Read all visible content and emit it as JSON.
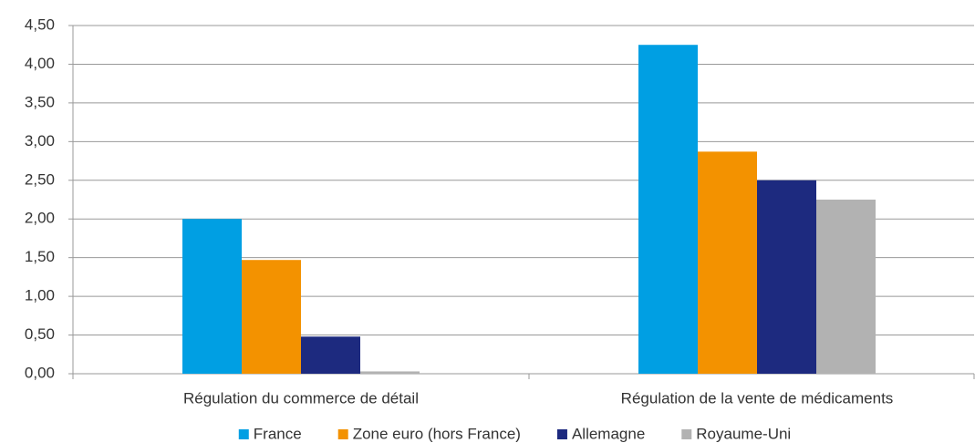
{
  "chart_data": {
    "type": "bar",
    "categories": [
      "Régulation du commerce de détail",
      "Régulation de la vente de médicaments"
    ],
    "series": [
      {
        "name": "France",
        "color": "#009fe3",
        "values": [
          2.0,
          4.25
        ]
      },
      {
        "name": "Zone euro (hors France)",
        "color": "#f39200",
        "values": [
          1.47,
          2.87
        ]
      },
      {
        "name": "Allemagne",
        "color": "#1d2a7f",
        "values": [
          0.48,
          2.5
        ]
      },
      {
        "name": "Royaume-Uni",
        "color": "#b2b2b2",
        "values": [
          0.03,
          2.25
        ]
      }
    ],
    "ylim": [
      0,
      4.5
    ],
    "yticks": [
      {
        "value": 0,
        "label": "0,00"
      },
      {
        "value": 0.5,
        "label": "0,50"
      },
      {
        "value": 1,
        "label": "1,00"
      },
      {
        "value": 1.5,
        "label": "1,50"
      },
      {
        "value": 2,
        "label": "2,00"
      },
      {
        "value": 2.5,
        "label": "2,50"
      },
      {
        "value": 3,
        "label": "3,00"
      },
      {
        "value": 3.5,
        "label": "3,50"
      },
      {
        "value": 4,
        "label": "4,00"
      },
      {
        "value": 4.5,
        "label": "4,50"
      }
    ],
    "grid": true,
    "legend": "bottom"
  }
}
